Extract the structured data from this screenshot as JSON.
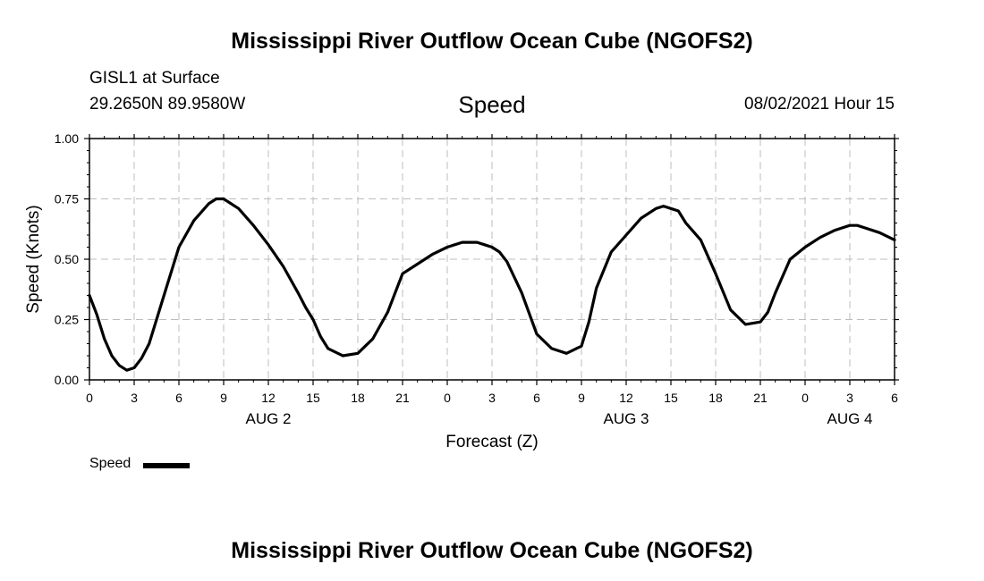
{
  "page": {
    "title_top": "Mississippi River Outflow Ocean Cube (NGOFS2)",
    "title_bottom": "Mississippi River Outflow Ocean Cube (NGOFS2)",
    "station": "GISL1 at Surface",
    "coords": "29.2650N  89.9580W",
    "variable": "Speed",
    "datetime": "08/02/2021 Hour 15"
  },
  "chart_data": {
    "type": "line",
    "ylabel": "Speed (Knots)",
    "xlabel": "Forecast (Z)",
    "ylim": [
      0,
      1
    ],
    "xlim": [
      0,
      54
    ],
    "y_ticks": [
      "0.00",
      "0.25",
      "0.50",
      "0.75",
      "1.00"
    ],
    "y_tick_values": [
      0,
      0.25,
      0.5,
      0.75,
      1.0
    ],
    "x_ticks": [
      "0",
      "3",
      "6",
      "9",
      "12",
      "15",
      "18",
      "21",
      "0",
      "3",
      "6",
      "9",
      "12",
      "15",
      "18",
      "21",
      "0",
      "3",
      "6"
    ],
    "x_tick_values": [
      0,
      3,
      6,
      9,
      12,
      15,
      18,
      21,
      24,
      27,
      30,
      33,
      36,
      39,
      42,
      45,
      48,
      51,
      54
    ],
    "day_labels": [
      {
        "label": "AUG 2",
        "x": 12
      },
      {
        "label": "AUG 3",
        "x": 36
      },
      {
        "label": "AUG 4",
        "x": 51
      }
    ],
    "grid": true,
    "legend": {
      "label": "Speed",
      "placement": "bottom-left"
    },
    "series": [
      {
        "name": "Speed",
        "x": [
          0,
          0.5,
          1,
          1.5,
          2,
          2.5,
          3,
          3.5,
          4,
          5,
          6,
          7,
          8,
          8.5,
          9,
          10,
          11,
          12,
          13,
          14,
          14.5,
          15,
          15.5,
          16,
          17,
          18,
          19,
          20,
          21,
          22,
          23,
          24,
          25,
          26,
          26.5,
          27,
          27.5,
          28,
          29,
          30,
          31,
          32,
          33,
          33.5,
          34,
          35,
          36,
          37,
          38,
          38.5,
          39,
          39.5,
          40,
          41,
          42,
          43,
          44,
          45,
          45.5,
          46,
          47,
          48,
          49,
          50,
          50.5,
          51,
          51.5,
          52,
          53,
          54
        ],
        "values": [
          0.35,
          0.27,
          0.17,
          0.1,
          0.06,
          0.04,
          0.05,
          0.09,
          0.15,
          0.35,
          0.55,
          0.66,
          0.73,
          0.75,
          0.75,
          0.71,
          0.64,
          0.56,
          0.47,
          0.36,
          0.3,
          0.25,
          0.18,
          0.13,
          0.1,
          0.11,
          0.17,
          0.28,
          0.44,
          0.48,
          0.52,
          0.55,
          0.57,
          0.57,
          0.56,
          0.55,
          0.53,
          0.49,
          0.36,
          0.19,
          0.13,
          0.11,
          0.14,
          0.24,
          0.38,
          0.53,
          0.6,
          0.67,
          0.71,
          0.72,
          0.71,
          0.7,
          0.65,
          0.58,
          0.44,
          0.29,
          0.23,
          0.24,
          0.28,
          0.36,
          0.5,
          0.55,
          0.59,
          0.62,
          0.63,
          0.64,
          0.64,
          0.63,
          0.61,
          0.58
        ]
      }
    ]
  }
}
